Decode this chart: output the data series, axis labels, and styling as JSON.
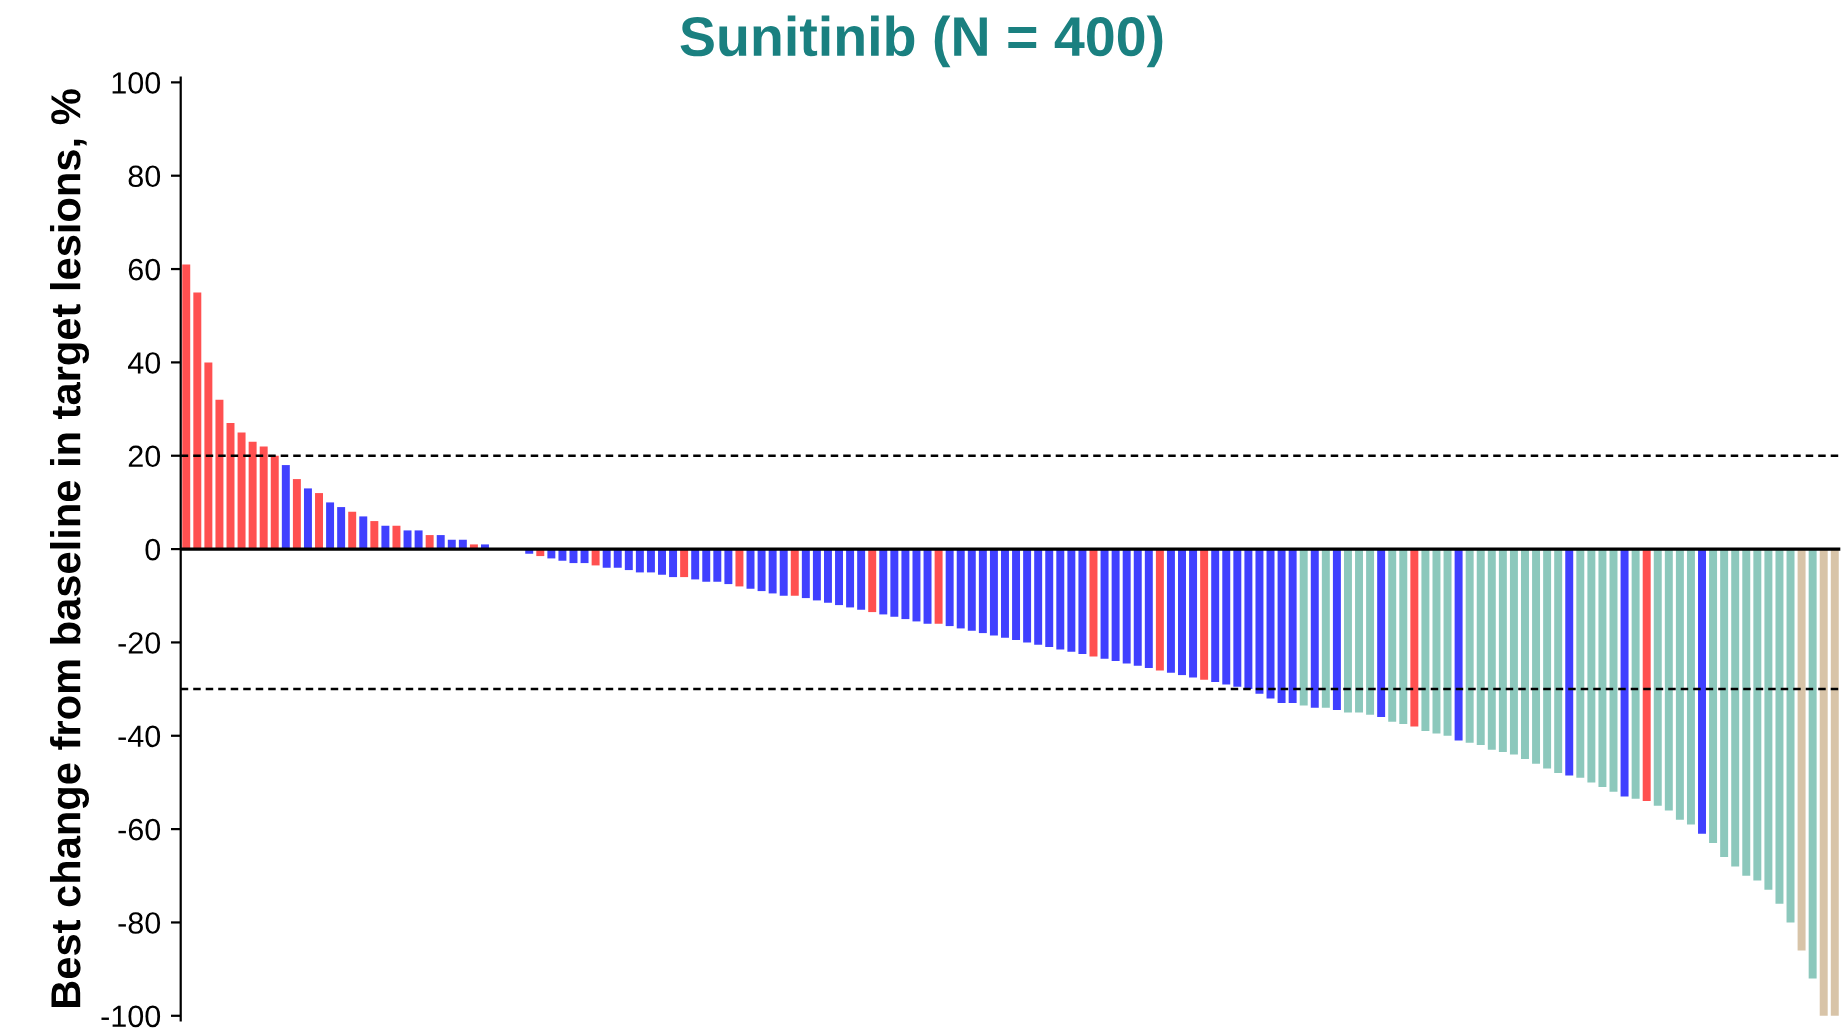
{
  "chart_data": {
    "type": "bar",
    "title": "Sunitinib (N = 400)",
    "ylabel": "Best change from baseline in target lesions, %",
    "categories": [
      null,
      null,
      null,
      null,
      null,
      null,
      null,
      null,
      null,
      null,
      null,
      null,
      null,
      null,
      null,
      null,
      null,
      null,
      null,
      null,
      null,
      null,
      null,
      null,
      null,
      null,
      null,
      null,
      null,
      null,
      null,
      null,
      null,
      null,
      null,
      null,
      null,
      null,
      null,
      null,
      null,
      null,
      null,
      null,
      null,
      null,
      null,
      null,
      null,
      null,
      null,
      null,
      null,
      null,
      null,
      null,
      null,
      null,
      null,
      null,
      null,
      null,
      null,
      null,
      null,
      null,
      null,
      null,
      null,
      null,
      null,
      null,
      null,
      null,
      null,
      null,
      null,
      null,
      null,
      null,
      null,
      null,
      null,
      null,
      null,
      null,
      null,
      null,
      null,
      null,
      null,
      null,
      null,
      null,
      null,
      null,
      null,
      null,
      null,
      null,
      null,
      null,
      null,
      null,
      null,
      null,
      null,
      null,
      null,
      null,
      null,
      null,
      null,
      null,
      null,
      null,
      null,
      null,
      null,
      null,
      null,
      null,
      null,
      null,
      null,
      null,
      null,
      null,
      null,
      null,
      null,
      null,
      null,
      null,
      null,
      null,
      null,
      null,
      null,
      null,
      null,
      null,
      null,
      null,
      null,
      null,
      null,
      null,
      null,
      null
    ],
    "values": [
      61,
      55,
      40,
      32,
      27,
      25,
      23,
      22,
      20,
      18,
      15,
      13,
      12,
      10,
      9,
      8,
      7,
      6,
      5,
      5,
      4,
      4,
      3,
      3,
      2,
      2,
      1,
      1,
      null,
      0,
      null,
      -1,
      -1.5,
      -2,
      -2.5,
      -3,
      -3,
      -3.5,
      -4,
      -4,
      -4.5,
      -5,
      -5,
      -5.5,
      -6,
      -6,
      -6.5,
      -7,
      -7,
      -7.5,
      -8,
      -8.5,
      -9,
      -9.5,
      -10,
      -10,
      -10.5,
      -11,
      -11.5,
      -12,
      -12.5,
      -13,
      -13.5,
      -14,
      -14.5,
      -15,
      -15.5,
      -16,
      -16,
      -16.5,
      -17,
      -17.5,
      -18,
      -18.5,
      -19,
      -19.5,
      -20,
      -20.5,
      -21,
      -21.5,
      -22,
      -22.5,
      -23,
      -23.5,
      -24,
      -24.5,
      -25,
      -25.5,
      -26,
      -26.5,
      -27,
      -27.5,
      -28,
      -28.5,
      -29,
      -29.5,
      -30,
      -31,
      -32,
      -33,
      -33,
      -33.5,
      -34,
      -34,
      -34.5,
      -35,
      -35,
      -35.5,
      -36,
      -37,
      -37.5,
      -38,
      -39,
      -39.5,
      -40,
      -41,
      -41.5,
      -42,
      -43,
      -43.5,
      -44,
      -45,
      -46,
      -47,
      -48,
      -48.5,
      -49,
      -50,
      -51,
      -52,
      -53,
      -53.5,
      -54,
      -55,
      -56,
      -58,
      -59,
      -61,
      -63,
      -66,
      -68,
      -70,
      -71,
      -73,
      -76,
      -80,
      -86,
      -92,
      -100,
      -100
    ],
    "colors": [
      "#ff5050",
      "#ff5050",
      "#ff5050",
      "#ff5050",
      "#ff5050",
      "#ff5050",
      "#ff5050",
      "#ff5050",
      "#ff5050",
      "#4040ff",
      "#ff5050",
      "#4040ff",
      "#ff5050",
      "#4040ff",
      "#4040ff",
      "#ff5050",
      "#4040ff",
      "#ff5050",
      "#4040ff",
      "#ff5050",
      "#4040ff",
      "#4040ff",
      "#ff5050",
      "#4040ff",
      "#4040ff",
      "#4040ff",
      "#ff5050",
      "#4040ff",
      "#4040ff",
      "#4040ff",
      "#4040ff",
      "#4040ff",
      "#ff5050",
      "#4040ff",
      "#4040ff",
      "#4040ff",
      "#4040ff",
      "#ff5050",
      "#4040ff",
      "#4040ff",
      "#4040ff",
      "#4040ff",
      "#4040ff",
      "#4040ff",
      "#4040ff",
      "#ff5050",
      "#4040ff",
      "#4040ff",
      "#4040ff",
      "#4040ff",
      "#ff5050",
      "#4040ff",
      "#4040ff",
      "#4040ff",
      "#4040ff",
      "#ff5050",
      "#4040ff",
      "#4040ff",
      "#4040ff",
      "#4040ff",
      "#4040ff",
      "#4040ff",
      "#ff5050",
      "#4040ff",
      "#4040ff",
      "#4040ff",
      "#4040ff",
      "#4040ff",
      "#ff5050",
      "#4040ff",
      "#4040ff",
      "#4040ff",
      "#4040ff",
      "#4040ff",
      "#4040ff",
      "#4040ff",
      "#4040ff",
      "#4040ff",
      "#4040ff",
      "#4040ff",
      "#4040ff",
      "#4040ff",
      "#ff5050",
      "#4040ff",
      "#4040ff",
      "#4040ff",
      "#4040ff",
      "#4040ff",
      "#ff5050",
      "#4040ff",
      "#4040ff",
      "#4040ff",
      "#ff5050",
      "#4040ff",
      "#4040ff",
      "#4040ff",
      "#4040ff",
      "#4040ff",
      "#4040ff",
      "#4040ff",
      "#4040ff",
      "#8cc8bc",
      "#4040ff",
      "#8cc8bc",
      "#4040ff",
      "#8cc8bc",
      "#8cc8bc",
      "#8cc8bc",
      "#4040ff",
      "#8cc8bc",
      "#8cc8bc",
      "#ff5050",
      "#8cc8bc",
      "#8cc8bc",
      "#8cc8bc",
      "#4040ff",
      "#8cc8bc",
      "#8cc8bc",
      "#8cc8bc",
      "#8cc8bc",
      "#8cc8bc",
      "#8cc8bc",
      "#8cc8bc",
      "#8cc8bc",
      "#8cc8bc",
      "#4040ff",
      "#8cc8bc",
      "#8cc8bc",
      "#8cc8bc",
      "#8cc8bc",
      "#4040ff",
      "#8cc8bc",
      "#ff5050",
      "#8cc8bc",
      "#8cc8bc",
      "#8cc8bc",
      "#8cc8bc",
      "#4040ff",
      "#8cc8bc",
      "#8cc8bc",
      "#8cc8bc",
      "#8cc8bc",
      "#8cc8bc",
      "#8cc8bc",
      "#8cc8bc",
      "#8cc8bc",
      "#d8c4a8",
      "#8cc8bc",
      "#d8c4a8",
      "#d8c4a8"
    ],
    "ylim": [
      -101,
      101
    ],
    "yticks": [
      -100,
      -80,
      -60,
      -40,
      -20,
      0,
      20,
      40,
      60,
      80,
      100
    ],
    "ref_lines": [
      {
        "axis": "y",
        "value": 0,
        "line_style": "solid",
        "color": "#000000"
      },
      {
        "axis": "y",
        "value": 20,
        "line_style": "dashed",
        "color": "#000000"
      },
      {
        "axis": "y",
        "value": -30,
        "line_style": "dashed",
        "color": "#000000"
      }
    ],
    "tick_labels": "y",
    "grid": false
  }
}
